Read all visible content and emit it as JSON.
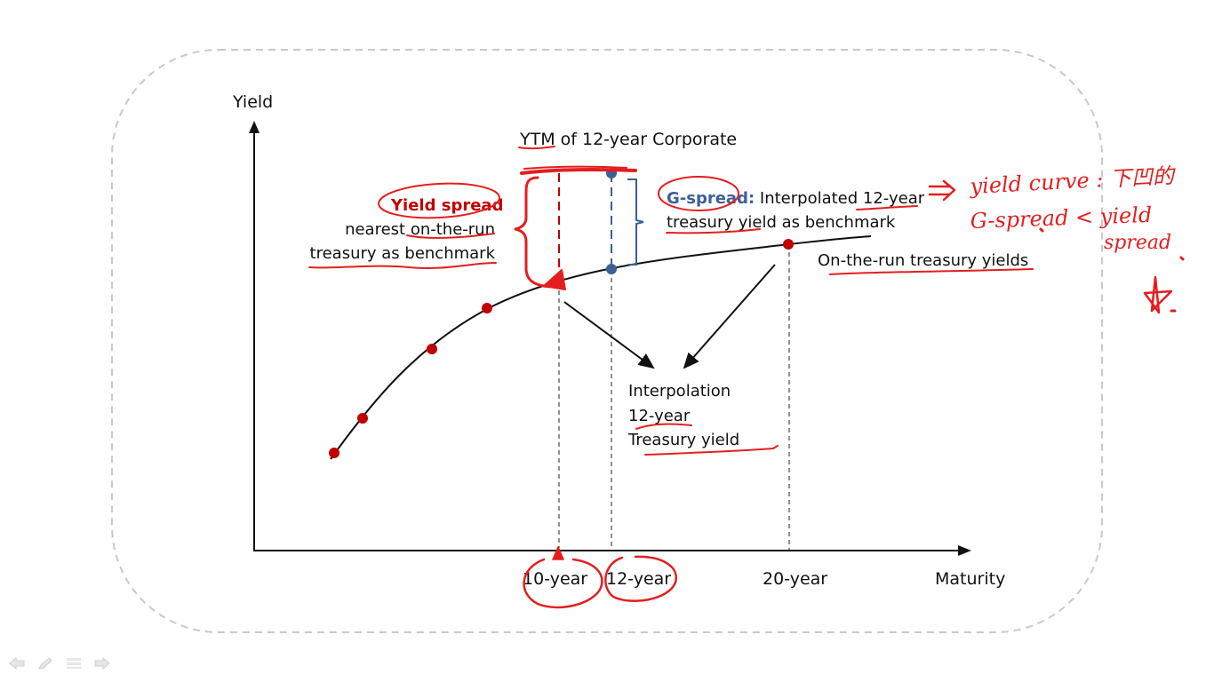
{
  "axes": {
    "y_label": "Yield",
    "x_label": "Maturity"
  },
  "ytm_label": "YTM of 12-year Corporate",
  "yield_spread": {
    "title": "Yield spread",
    "line2": "nearest on-the-run",
    "line3": "treasury as benchmark"
  },
  "g_spread": {
    "title": "G-spread:",
    "line1_rest": " Interpolated 12-year",
    "line2": "treasury yield as benchmark"
  },
  "otr_label": "On-the-run treasury yields",
  "interp": {
    "line1": "Interpolation",
    "line2": "12-year",
    "line3": "Treasury yield"
  },
  "ticks": {
    "t10": "10-year",
    "t12": "12-year",
    "t20": "20-year"
  },
  "handwriting": {
    "line1": "yield curve : 下凹的",
    "line2": "G-spread < yield",
    "line3": "spread"
  },
  "toolbar": [
    {
      "name": "prev-arrow-icon"
    },
    {
      "name": "pen-icon"
    },
    {
      "name": "menu-icon"
    },
    {
      "name": "next-arrow-icon"
    }
  ],
  "colors": {
    "ink_red": "#e41e1e",
    "point_red": "#c00000",
    "blue": "#3d5f94",
    "frame": "#c9c9c9"
  }
}
